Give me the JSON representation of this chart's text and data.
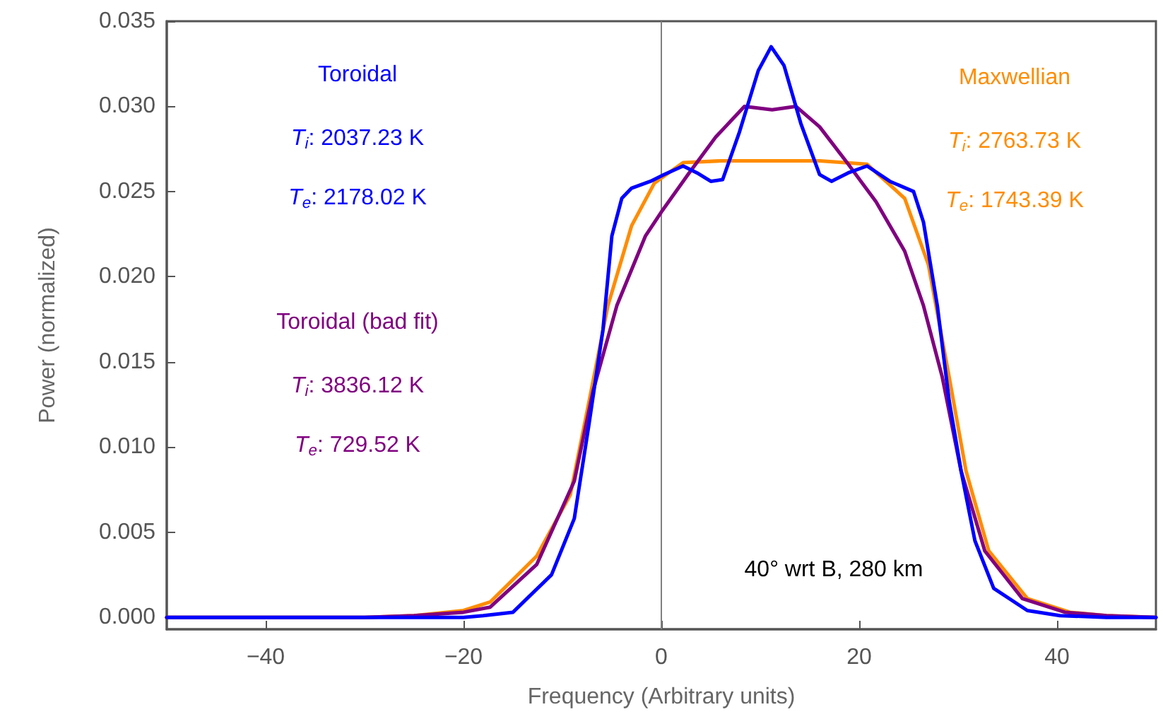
{
  "chart_data": {
    "type": "line",
    "xlabel": "Frequency (Arbitrary units)",
    "ylabel": "Power (normalized)",
    "xlim": [
      -50,
      50
    ],
    "xticks": [
      -40,
      -20,
      0,
      20,
      40
    ],
    "ylim": [
      -0.0007,
      0.035
    ],
    "yticks": [
      {
        "value": 0,
        "label": "0.000"
      },
      {
        "value": 0.005,
        "label": "0.005"
      },
      {
        "value": 0.01,
        "label": "0.010"
      },
      {
        "value": 0.015,
        "label": "0.015"
      },
      {
        "value": 0.02,
        "label": "0.020"
      },
      {
        "value": 0.025,
        "label": "0.025"
      },
      {
        "value": 0.03,
        "label": "0.030"
      },
      {
        "value": 0.035,
        "label": "0.035"
      }
    ],
    "marker": "none",
    "line_style": "solid",
    "ref_lines": [
      {
        "axis": "x",
        "value": 0,
        "color": "#808080"
      }
    ],
    "annotations": [
      "T$_{i}$: 2763.73 K",
      "T$_{e}$: 1743.39 K",
      "T$_{i}$: 3836.12 K",
      "T$_{e}$: 729.52 K",
      "T$_{i}$: 2037.23 K",
      "T$_{e}$: 2178.02 K",
      "40° wrt B, 280 km"
    ],
    "series": [
      {
        "name": "Maxwellian",
        "color": "#ff8c00",
        "x": [
          -50,
          -30,
          -25,
          -20,
          -17.3,
          -12.6,
          -9.2,
          -7.3,
          -5.4,
          -3,
          -0.7,
          2.2,
          6,
          11,
          16,
          20.8,
          24.6,
          27,
          29.1,
          30.8,
          33.1,
          37,
          41.3,
          45,
          50
        ],
        "values": [
          0,
          0,
          0.0001,
          0.0004,
          0.0009,
          0.0036,
          0.0072,
          0.0127,
          0.0183,
          0.023,
          0.0255,
          0.0267,
          0.0268,
          0.0268,
          0.0268,
          0.0266,
          0.0246,
          0.0207,
          0.0141,
          0.0086,
          0.0039,
          0.0011,
          0.0003,
          0.0001,
          0
        ]
      },
      {
        "name": "Toroidal (bad fit)",
        "color": "#800080",
        "x": [
          -50,
          -30,
          -25,
          -20,
          -17.3,
          -12.6,
          -8.8,
          -6.9,
          -4.5,
          -1.6,
          0,
          2.7,
          5.5,
          8.4,
          11.2,
          13.6,
          16,
          18.9,
          21.7,
          24.6,
          26.5,
          28.4,
          30.3,
          32.7,
          36.5,
          40.8,
          45,
          50
        ],
        "values": [
          0,
          0,
          0.0001,
          0.0003,
          0.0006,
          0.0031,
          0.008,
          0.0133,
          0.0183,
          0.0224,
          0.0238,
          0.026,
          0.0282,
          0.03,
          0.0298,
          0.03,
          0.0288,
          0.0266,
          0.0244,
          0.0215,
          0.0183,
          0.0141,
          0.0086,
          0.0039,
          0.0011,
          0.0003,
          0.0001,
          0
        ]
      },
      {
        "name": "Toroidal",
        "color": "#0000ff",
        "x": [
          -50,
          -30,
          -20,
          -18,
          -15,
          -11.1,
          -8.8,
          -7.3,
          -5.9,
          -5,
          -4,
          -3,
          -1.1,
          0.3,
          2.2,
          3.6,
          5,
          6.2,
          7.9,
          9.8,
          11.1,
          12.4,
          14.1,
          16,
          17.2,
          18.9,
          20.8,
          23.1,
          25.5,
          26.5,
          27.9,
          29.1,
          30.3,
          31.7,
          33.6,
          37,
          40.3,
          45,
          50
        ],
        "values": [
          0,
          0,
          0,
          0.0001,
          0.0003,
          0.0025,
          0.0058,
          0.0114,
          0.0169,
          0.0224,
          0.0246,
          0.0252,
          0.0256,
          0.026,
          0.0265,
          0.0261,
          0.0256,
          0.0257,
          0.0285,
          0.0321,
          0.0335,
          0.0324,
          0.029,
          0.026,
          0.0256,
          0.0261,
          0.0265,
          0.0256,
          0.025,
          0.0232,
          0.0183,
          0.0127,
          0.0086,
          0.0045,
          0.0017,
          0.0004,
          0.0001,
          0,
          0
        ]
      }
    ]
  }
}
